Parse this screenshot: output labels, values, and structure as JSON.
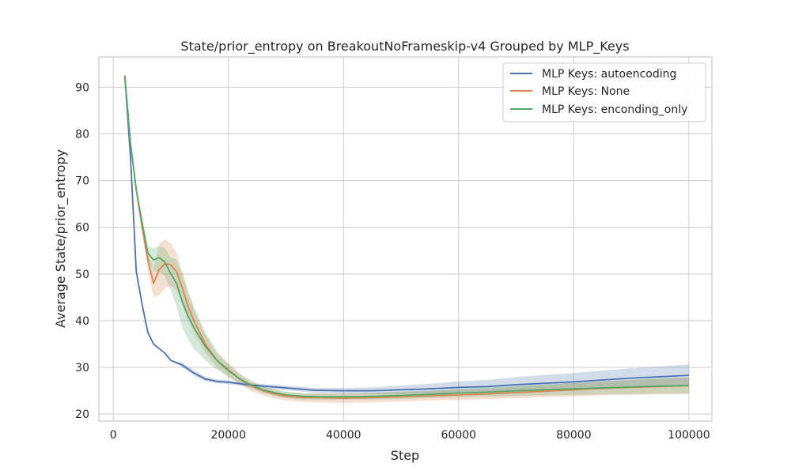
{
  "chart_data": {
    "type": "line",
    "title": "State/prior_entropy on BreakoutNoFrameskip-v4 Grouped by MLP_Keys",
    "xlabel": "Step",
    "ylabel": "Average State/prior_entropy",
    "xlim": [
      -2500,
      104000
    ],
    "ylim": [
      18.5,
      96.5
    ],
    "xticks": [
      0,
      20000,
      40000,
      60000,
      80000,
      100000
    ],
    "xtick_labels": [
      "0",
      "20000",
      "40000",
      "60000",
      "80000",
      "100000"
    ],
    "yticks": [
      20,
      30,
      40,
      50,
      60,
      70,
      80,
      90
    ],
    "ytick_labels": [
      "20",
      "30",
      "40",
      "50",
      "60",
      "70",
      "80",
      "90"
    ],
    "grid": true,
    "legend_position": "top-right",
    "series": [
      {
        "name": "MLP Keys: autoencoding",
        "color": "#4c72b0",
        "x": [
          2000,
          3000,
          4000,
          5000,
          6000,
          7000,
          8000,
          9000,
          10000,
          12000,
          14000,
          16000,
          18000,
          20000,
          22000,
          24000,
          26000,
          28000,
          30000,
          35000,
          40000,
          45000,
          50000,
          55000,
          60000,
          65000,
          70000,
          75000,
          80000,
          85000,
          90000,
          95000,
          100000
        ],
        "y": [
          92.5,
          75,
          50.5,
          43.5,
          37.5,
          35,
          34,
          33,
          31.5,
          30.5,
          28.8,
          27.5,
          27,
          26.8,
          26.5,
          26.2,
          26,
          25.8,
          25.6,
          25.1,
          25,
          25,
          25.2,
          25.4,
          25.7,
          25.9,
          26.3,
          26.6,
          26.9,
          27.3,
          27.7,
          28,
          28.3
        ],
        "lower": [
          92.5,
          75,
          50.5,
          43.5,
          37.5,
          35,
          34,
          33,
          31.5,
          30,
          28.2,
          27,
          26.6,
          26.4,
          26.1,
          25.8,
          25.6,
          25.3,
          25.1,
          24.6,
          24.4,
          24.3,
          24.3,
          24.3,
          24.4,
          24.5,
          24.7,
          24.8,
          25,
          25.3,
          25.6,
          25.8,
          26
        ],
        "upper": [
          92.5,
          75,
          50.5,
          43.5,
          37.5,
          35,
          34,
          33,
          31.5,
          31,
          29.4,
          28,
          27.4,
          27.2,
          26.9,
          26.6,
          26.4,
          26.3,
          26.1,
          25.6,
          25.6,
          25.7,
          26.1,
          26.5,
          27,
          27.3,
          27.9,
          28.4,
          28.8,
          29.3,
          29.8,
          30.2,
          30.6
        ]
      },
      {
        "name": "MLP Keys: None",
        "color": "#dd8452",
        "x": [
          2000,
          3000,
          4000,
          5000,
          6000,
          7000,
          8000,
          9000,
          10000,
          11000,
          12000,
          13000,
          14000,
          16000,
          18000,
          20000,
          22000,
          24000,
          26000,
          28000,
          30000,
          33000,
          36000,
          40000,
          45000,
          50000,
          55000,
          60000,
          65000,
          70000,
          75000,
          80000,
          85000,
          90000,
          95000,
          100000
        ],
        "y": [
          92.5,
          78,
          68,
          60,
          53,
          48,
          51,
          52.2,
          52,
          50.5,
          47,
          43,
          40,
          35,
          31.5,
          29.5,
          27.5,
          26,
          25,
          24.3,
          23.8,
          23.5,
          23.5,
          23.4,
          23.5,
          23.7,
          23.9,
          24.1,
          24.3,
          24.6,
          24.9,
          25.2,
          25.5,
          25.7,
          25.9,
          26.1
        ],
        "lower": [
          92.5,
          78,
          68,
          59,
          51,
          45,
          45.5,
          47,
          47.5,
          46.5,
          43.5,
          40,
          37.5,
          33,
          30,
          28,
          26.3,
          24.9,
          24,
          23.3,
          22.9,
          22.6,
          22.5,
          22.4,
          22.5,
          22.7,
          22.9,
          23,
          23.2,
          23.4,
          23.6,
          23.8,
          24,
          24.1,
          24.2,
          24.3
        ],
        "upper": [
          92.5,
          78,
          68,
          61,
          55,
          51,
          56.5,
          57.5,
          56.5,
          54.5,
          50.5,
          46,
          42.5,
          37,
          33,
          31,
          28.7,
          27.1,
          26,
          25.3,
          24.7,
          24.4,
          24.5,
          24.4,
          24.5,
          24.7,
          24.9,
          25.2,
          25.4,
          25.8,
          26.2,
          26.6,
          27,
          27.3,
          27.6,
          27.9
        ]
      },
      {
        "name": "MLP Keys: enconding_only",
        "color": "#55a868",
        "x": [
          2000,
          3000,
          4000,
          5000,
          6000,
          7000,
          8000,
          9000,
          10000,
          11000,
          12000,
          13000,
          14000,
          16000,
          18000,
          20000,
          22000,
          24000,
          26000,
          28000,
          30000,
          33000,
          36000,
          40000,
          45000,
          50000,
          55000,
          60000,
          65000,
          70000,
          75000,
          80000,
          85000,
          90000,
          95000,
          100000
        ],
        "y": [
          92.5,
          78,
          68,
          61,
          54.5,
          53,
          53.5,
          52.5,
          50,
          48,
          44,
          41,
          38.5,
          34.5,
          31.5,
          29.3,
          27.5,
          26.2,
          25.2,
          24.6,
          24.1,
          23.8,
          23.7,
          23.7,
          23.8,
          24,
          24.2,
          24.5,
          24.7,
          25,
          25.2,
          25.4,
          25.6,
          25.8,
          26,
          26.1
        ],
        "lower": [
          92.5,
          78,
          68,
          60,
          53,
          50.5,
          50.5,
          49.5,
          46.5,
          43,
          38.5,
          36,
          34,
          31.5,
          29.5,
          28,
          26.5,
          25.4,
          24.5,
          23.9,
          23.4,
          23.1,
          23,
          23,
          23.1,
          23.2,
          23.4,
          23.6,
          23.7,
          23.9,
          24,
          24.1,
          24.2,
          24.3,
          24.4,
          24.4
        ],
        "upper": [
          92.5,
          78,
          68,
          62,
          56,
          55.5,
          56,
          55.5,
          53.5,
          53,
          50,
          46.5,
          43,
          37.5,
          33.5,
          30.6,
          28.5,
          27,
          25.9,
          25.3,
          24.8,
          24.5,
          24.4,
          24.4,
          24.5,
          24.8,
          25,
          25.4,
          25.7,
          26.1,
          26.4,
          26.7,
          27,
          27.3,
          27.6,
          27.8
        ]
      }
    ]
  }
}
